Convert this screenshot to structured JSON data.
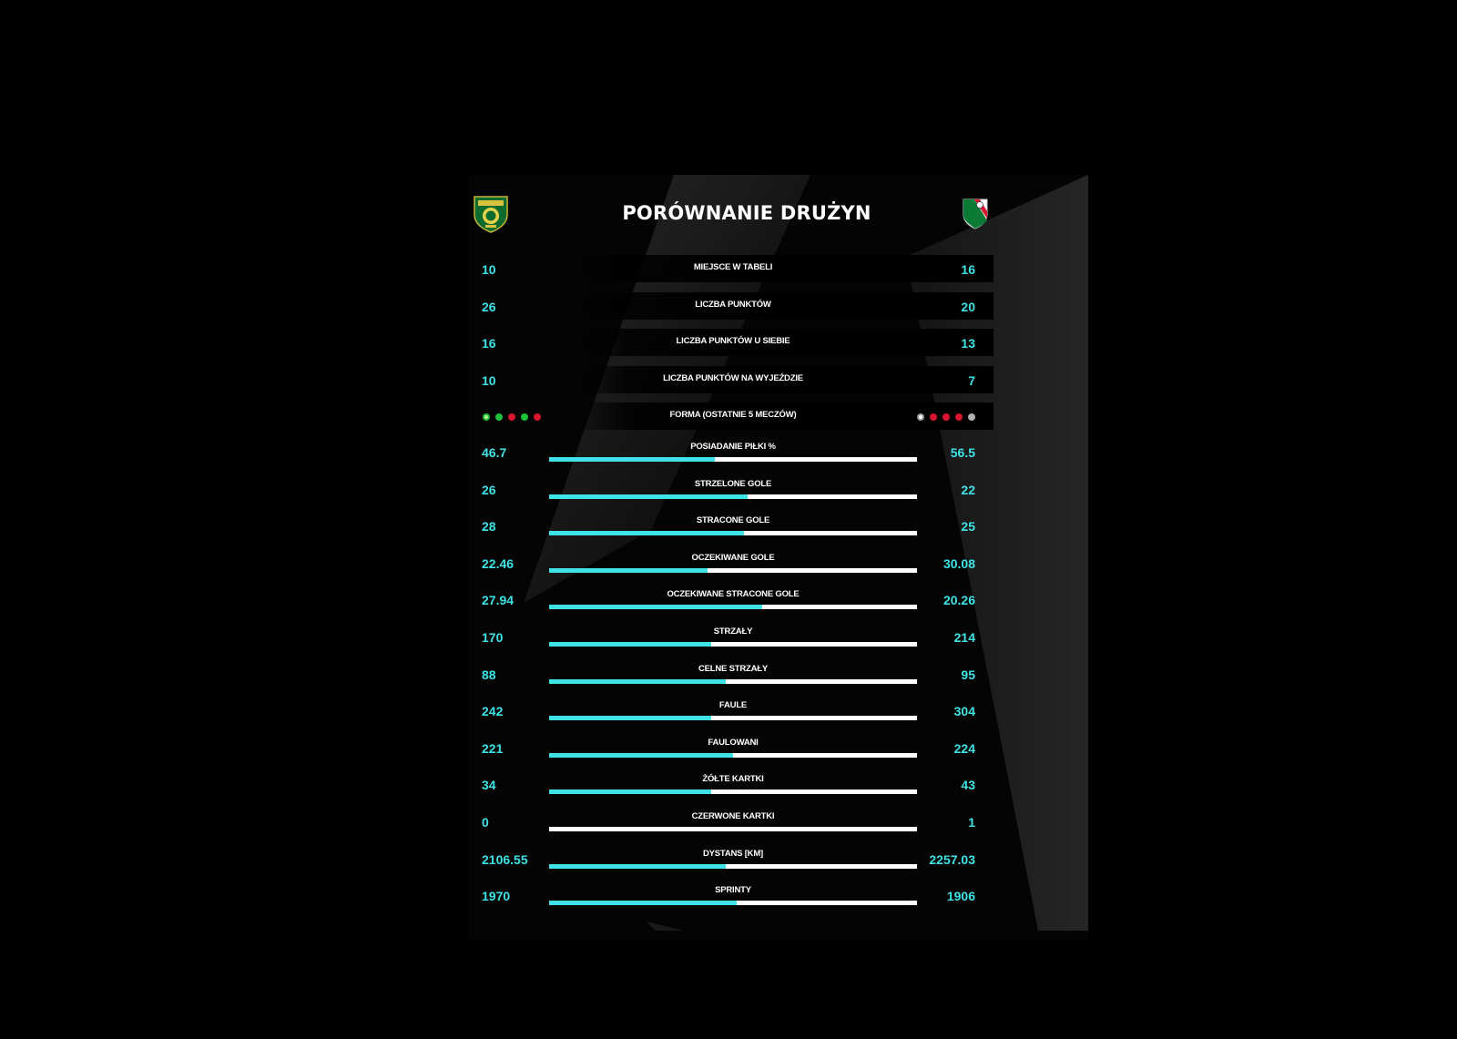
{
  "header": {
    "title": "PORÓWNANIE DRUŻYN",
    "home_crest": "gks-katowice-crest",
    "away_crest": "legia-warszawa-crest"
  },
  "colors": {
    "accent": "#3fe3e6",
    "bar_track": "#ffffff",
    "win": "#1fc13a",
    "loss": "#d8152f",
    "draw": "#b0b0b0",
    "background": "#000000"
  },
  "rows": [
    {
      "label": "MIEJSCE W TABELI",
      "home": "10",
      "away": "16"
    },
    {
      "label": "LICZBA PUNKTÓW",
      "home": "26",
      "away": "20"
    },
    {
      "label": "LICZBA PUNKTÓW U SIEBIE",
      "home": "16",
      "away": "13"
    },
    {
      "label": "LICZBA PUNKTÓW NA WYJEŹDZIE",
      "home": "10",
      "away": "7"
    },
    {
      "label": "FORMA (OSTATNIE 5 MECZÓW)",
      "home_form": [
        "W",
        "W",
        "L",
        "W",
        "L"
      ],
      "away_form": [
        "D",
        "L",
        "L",
        "L",
        "D"
      ]
    }
  ],
  "stats": [
    {
      "label": "POSIADANIE PIŁKI %",
      "home": "46.7",
      "away": "56.5",
      "home_share": 0.45
    },
    {
      "label": "STRZELONE GOLE",
      "home": "26",
      "away": "22",
      "home_share": 0.54
    },
    {
      "label": "STRACONE GOLE",
      "home": "28",
      "away": "25",
      "home_share": 0.53
    },
    {
      "label": "OCZEKIWANE GOLE",
      "home": "22.46",
      "away": "30.08",
      "home_share": 0.43
    },
    {
      "label": "OCZEKIWANE STRACONE GOLE",
      "home": "27.94",
      "away": "20.26",
      "home_share": 0.58
    },
    {
      "label": "STRZAŁY",
      "home": "170",
      "away": "214",
      "home_share": 0.44
    },
    {
      "label": "CELNE STRZAŁY",
      "home": "88",
      "away": "95",
      "home_share": 0.48
    },
    {
      "label": "FAULE",
      "home": "242",
      "away": "304",
      "home_share": 0.44
    },
    {
      "label": "FAULOWANI",
      "home": "221",
      "away": "224",
      "home_share": 0.5
    },
    {
      "label": "ŻÓŁTE KARTKI",
      "home": "34",
      "away": "43",
      "home_share": 0.44
    },
    {
      "label": "CZERWONE KARTKI",
      "home": "0",
      "away": "1",
      "home_share": 0.0
    },
    {
      "label": "DYSTANS [KM]",
      "home": "2106.55",
      "away": "2257.03",
      "home_share": 0.48
    },
    {
      "label": "SPRINTY",
      "home": "1970",
      "away": "1906",
      "home_share": 0.51
    }
  ]
}
